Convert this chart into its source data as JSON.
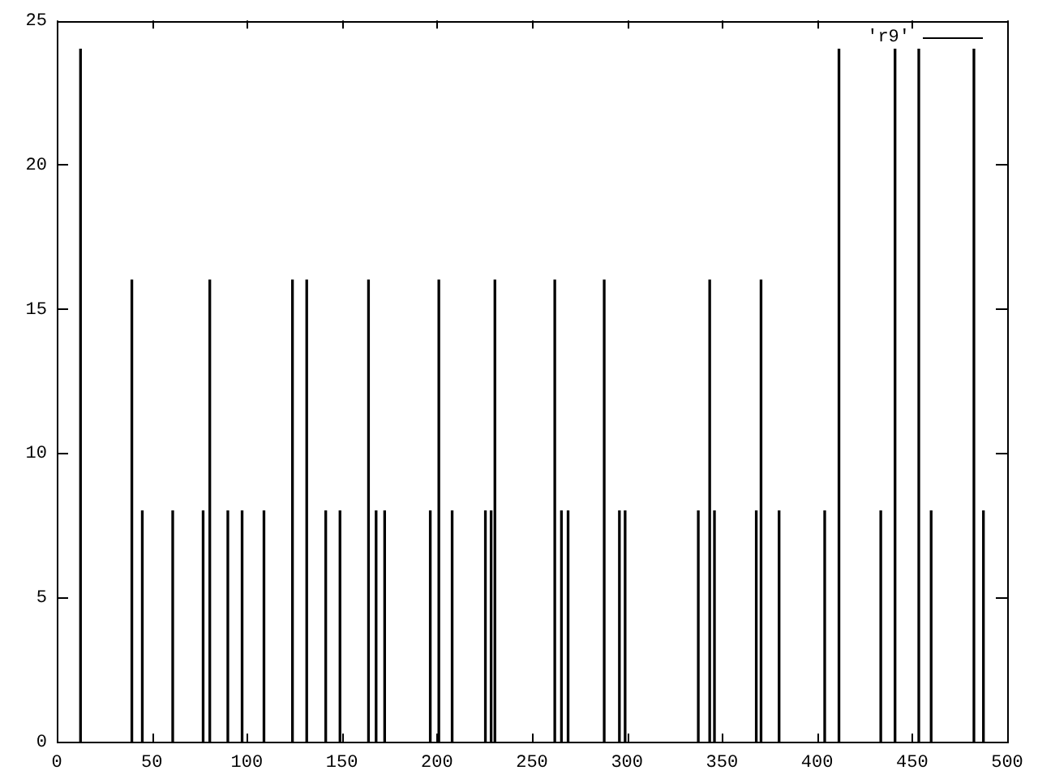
{
  "chart_data": {
    "type": "bar",
    "x": [
      12.5,
      39.5,
      45,
      61,
      77,
      80.5,
      90,
      97.5,
      109,
      124,
      131.5,
      141.5,
      149,
      164,
      168,
      172.5,
      196.5,
      201,
      208,
      225.5,
      228.5,
      230.5,
      262,
      265.5,
      269,
      288,
      296,
      299,
      337.5,
      343.5,
      346,
      368,
      370.5,
      380,
      404,
      411.5,
      433.5,
      441,
      453.5,
      460,
      482.5,
      487.5
    ],
    "series": [
      {
        "name": "'r9'",
        "color": "#000000",
        "values": [
          24,
          16,
          8,
          8,
          8,
          16,
          8,
          8,
          8,
          16,
          16,
          8,
          8,
          16,
          8,
          8,
          8,
          16,
          8,
          8,
          8,
          16,
          16,
          8,
          8,
          16,
          8,
          8,
          8,
          16,
          8,
          8,
          16,
          8,
          8,
          24,
          8,
          24,
          24,
          8,
          24,
          8
        ]
      }
    ],
    "xlim": [
      0,
      500
    ],
    "xticks": [
      0,
      50,
      100,
      150,
      200,
      250,
      300,
      350,
      400,
      450,
      500
    ],
    "ylim": [
      0,
      25
    ],
    "yticks": [
      0,
      5,
      10,
      15,
      20,
      25
    ],
    "grid": false,
    "legend": "top right"
  }
}
